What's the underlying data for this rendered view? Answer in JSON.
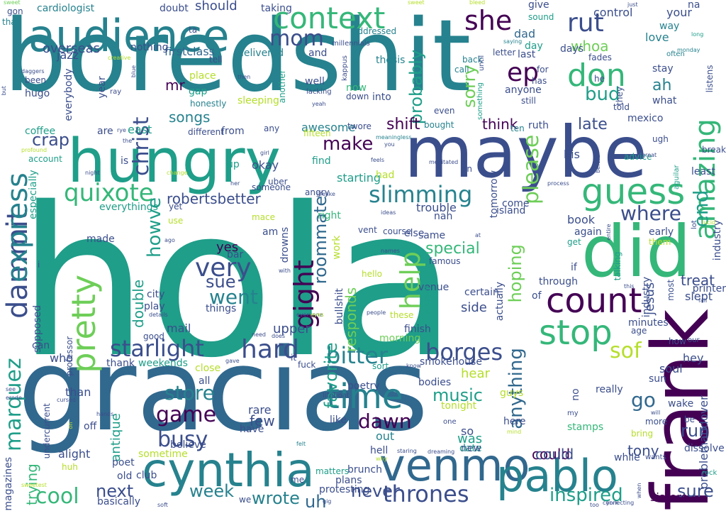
{
  "palette": {
    "dark_purple": "#440154",
    "indigo": "#3b4e8c",
    "blue": "#31688e",
    "teal": "#26828e",
    "sea": "#1f9e89",
    "green": "#35b779",
    "lime": "#6ece58",
    "yellowgreen": "#b5de2b",
    "yellow": "#fde725"
  },
  "words": [
    "hola",
    "boredshit",
    "gracias",
    "maybe",
    "hungry",
    "did",
    "frank",
    "venmo",
    "cynthia",
    "pablo",
    "audience",
    "count",
    "guess",
    "stop",
    "dammit",
    "time",
    "context",
    "express",
    "pretty",
    "amazing",
    "don",
    "quixote",
    "gight",
    "hard",
    "help",
    "slimming",
    "she",
    "rut",
    "ep",
    "end",
    "starlight",
    "borges",
    "bitter",
    "marquez",
    "thrones",
    "inspired",
    "cool",
    "busy",
    "game",
    "sof",
    "where",
    "very",
    "please",
    "howve",
    "mom",
    "christ",
    "robertsbetter",
    "special",
    "roommate",
    "make",
    "crap",
    "dawn",
    "music",
    "week",
    "wrote",
    "next",
    "uh",
    "never",
    "sure",
    "anything",
    "favorite",
    "go",
    "store",
    "run",
    "sue",
    "went",
    "yes",
    "songs",
    "mr",
    "ah",
    "bud",
    "firstclass",
    "probably",
    "antique",
    "could",
    "treat",
    "late",
    "overseas",
    "sorry",
    "whoa",
    "double",
    "hoping",
    "shift",
    "think",
    "upper",
    "side",
    "tony",
    "trying",
    "responds",
    "mail",
    "hear",
    "was",
    "cardiologist",
    "should",
    "control",
    "your",
    "love",
    "dad",
    "day",
    "days",
    "uber",
    "okay",
    "jesus",
    "aguilar",
    "advice",
    "least",
    "break",
    "mexico",
    "ruth",
    "ten",
    "his",
    "told",
    "they",
    "what",
    "stay",
    "listens",
    "fades",
    "often",
    "last",
    "letter",
    "give",
    "sound",
    "way",
    "long",
    "monday",
    "na",
    "saying",
    "back",
    "call",
    "for",
    "has",
    "anyone",
    "still",
    "even",
    "bought",
    "something",
    "ago",
    "until",
    "bleed",
    "sweet",
    "just",
    "gon",
    "that",
    "daggers",
    "jazz",
    "creative",
    "everybody",
    "hugo",
    "been",
    "ray",
    "year",
    "gap",
    "honestly",
    "place",
    "blue",
    "nothing",
    "tell",
    "delivered",
    "and",
    "millennials",
    "addressed",
    "thesis",
    "kappus",
    "lacking",
    "yeah",
    "now",
    "down",
    "into",
    "well",
    "another",
    "sleeping",
    "awesome",
    "twore",
    "fifteen",
    "meaningless",
    "any",
    "different",
    "from",
    "east",
    "coffee",
    "are",
    "rye",
    "account",
    "especially",
    "profound",
    "the",
    "is",
    "up",
    "someone",
    "starting",
    "find",
    "you",
    "feels",
    "girl",
    "meditated",
    "had",
    "else",
    "angry",
    "lifelike",
    "her",
    "change",
    "everythings",
    "yet",
    "mace",
    "use",
    "am",
    "right",
    "drowns",
    "trouble",
    "nah",
    "vent",
    "ideas",
    "course",
    "same",
    "tomorrow",
    "come",
    "island",
    "process",
    "book",
    "again",
    "early",
    "get",
    "them",
    "industry",
    "lucid",
    "entire",
    "lot",
    "if",
    "through",
    "slept",
    "minutes",
    "age",
    "how",
    "hey",
    "problemandover",
    "soul",
    "sun",
    "wake",
    "bring",
    "more",
    "be",
    "dissolve",
    "wants",
    "rock",
    "really",
    "guys",
    "here",
    "date",
    "stamps",
    "mind",
    "certain",
    "industry",
    "actually",
    "famous",
    "venue",
    "names",
    "hello",
    "yourself",
    "people",
    "these",
    "finish",
    "morning",
    "smokehouse",
    "sort",
    "know",
    "poetry",
    "bodies",
    "tonight",
    "lifeboat",
    "like",
    "one",
    "new",
    "dreaming",
    "staring",
    "why",
    "hell",
    "brunch",
    "plans",
    "protesting",
    "gig",
    "matters",
    "felt",
    "fuck",
    "rare",
    "few",
    "believe",
    "have",
    "out",
    "alight",
    "off",
    "sometime",
    "poet",
    "old",
    "club",
    "huh",
    "magazines",
    "sweetest",
    "basically",
    "we",
    "me",
    "soft",
    "than",
    "see",
    "erode",
    "cursed",
    "hands",
    "undercurrent",
    "on",
    "made",
    "play",
    "city",
    "bar",
    "things",
    "with",
    "details",
    "everyone",
    "does",
    "eyes",
    "need",
    "bullshit",
    "work",
    "thank",
    "weekends",
    "close",
    "gave",
    "all",
    "it",
    "professor",
    "good",
    "supposed",
    "i",
    "fall",
    "this",
    "most",
    "talking",
    "printer",
    "our",
    "york",
    "too",
    "connecting",
    "sisters",
    "when",
    "will",
    "my",
    "while",
    "at",
    "of",
    "taking",
    "doubt",
    "but",
    "then",
    "ta",
    "in",
    "sweet",
    "great",
    "before",
    "night",
    "ugh",
    "so",
    "he",
    "no",
    "can",
    "who",
    "could"
  ]
}
